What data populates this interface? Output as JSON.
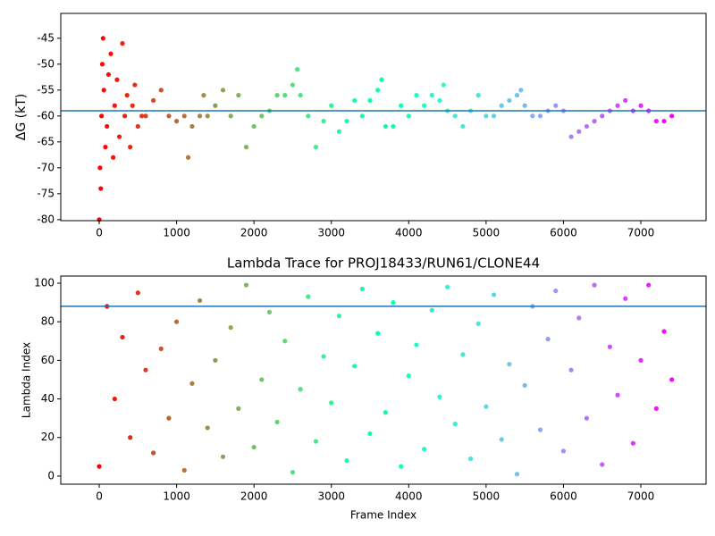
{
  "chart_data": [
    {
      "type": "scatter",
      "ylabel": "ΔG (kT)",
      "colormap": "rainbow_r",
      "hline": -59,
      "hline_color": "#1f77b4",
      "xlim": [
        -497,
        7843
      ],
      "ylim": [
        -80.2,
        -40.2
      ],
      "xticks": [
        0,
        1000,
        2000,
        3000,
        4000,
        5000,
        6000,
        7000
      ],
      "yticks": [
        -80,
        -75,
        -70,
        -65,
        -60,
        -55,
        -50,
        -45
      ],
      "x": [
        0,
        10,
        20,
        30,
        40,
        50,
        60,
        80,
        100,
        120,
        150,
        180,
        200,
        230,
        260,
        300,
        330,
        360,
        400,
        430,
        460,
        500,
        550,
        600,
        700,
        800,
        900,
        1000,
        1100,
        1150,
        1200,
        1300,
        1350,
        1400,
        1500,
        1600,
        1700,
        1800,
        1900,
        2000,
        2100,
        2200,
        2300,
        2400,
        2500,
        2560,
        2600,
        2700,
        2800,
        2900,
        3000,
        3100,
        3200,
        3300,
        3400,
        3500,
        3600,
        3650,
        3700,
        3800,
        3900,
        4000,
        4100,
        4200,
        4300,
        4400,
        4450,
        4500,
        4600,
        4700,
        4800,
        4900,
        5000,
        5100,
        5200,
        5300,
        5400,
        5450,
        5500,
        5600,
        5700,
        5800,
        5900,
        6000,
        6100,
        6200,
        6300,
        6400,
        6500,
        6600,
        6700,
        6800,
        6900,
        7000,
        7100,
        7200,
        7300,
        7400
      ],
      "values": [
        -80,
        -70,
        -74,
        -60,
        -50,
        -45,
        -55,
        -66,
        -62,
        -52,
        -48,
        -68,
        -58,
        -53,
        -64,
        -46,
        -60,
        -56,
        -66,
        -58,
        -54,
        -62,
        -60,
        -60,
        -57,
        -55,
        -60,
        -61,
        -60,
        -68,
        -62,
        -60,
        -56,
        -60,
        -58,
        -55,
        -60,
        -56,
        -66,
        -62,
        -60,
        -59,
        -56,
        -56,
        -54,
        -51,
        -56,
        -60,
        -66,
        -61,
        -58,
        -63,
        -61,
        -57,
        -60,
        -57,
        -55,
        -53,
        -62,
        -62,
        -58,
        -60,
        -56,
        -58,
        -56,
        -57,
        -54,
        -59,
        -60,
        -62,
        -59,
        -56,
        -60,
        -60,
        -58,
        -57,
        -56,
        -55,
        -58,
        -60,
        -60,
        -59,
        -58,
        -59,
        -64,
        -63,
        -62,
        -61,
        -60,
        -59,
        -58,
        -57,
        -59,
        -58,
        -59,
        -61,
        -61,
        -60
      ]
    },
    {
      "type": "scatter",
      "title": "Lambda Trace for PROJ18433/RUN61/CLONE44",
      "xlabel": "Frame Index",
      "ylabel": "Lambda Index",
      "colormap": "rainbow_r",
      "hline": 88,
      "hline_color": "#1f77b4",
      "xlim": [
        -497,
        7843
      ],
      "ylim": [
        -4.2,
        103.7
      ],
      "xticks": [
        0,
        1000,
        2000,
        3000,
        4000,
        5000,
        6000,
        7000
      ],
      "yticks": [
        0,
        20,
        40,
        60,
        80,
        100
      ],
      "x": [
        0,
        100,
        200,
        300,
        400,
        500,
        600,
        700,
        800,
        900,
        1000,
        1100,
        1200,
        1300,
        1400,
        1500,
        1600,
        1700,
        1800,
        1900,
        2000,
        2100,
        2200,
        2300,
        2400,
        2500,
        2600,
        2700,
        2800,
        2900,
        3000,
        3100,
        3200,
        3300,
        3400,
        3500,
        3600,
        3700,
        3800,
        3900,
        4000,
        4100,
        4200,
        4300,
        4400,
        4500,
        4600,
        4700,
        4800,
        4900,
        5000,
        5100,
        5200,
        5300,
        5400,
        5500,
        5600,
        5700,
        5800,
        5900,
        6000,
        6100,
        6200,
        6300,
        6400,
        6500,
        6600,
        6700,
        6800,
        6900,
        7000,
        7100,
        7200,
        7300,
        7400
      ],
      "values": [
        5,
        88,
        40,
        72,
        20,
        95,
        55,
        12,
        66,
        30,
        80,
        3,
        48,
        91,
        25,
        60,
        10,
        77,
        35,
        99,
        15,
        50,
        85,
        28,
        70,
        2,
        45,
        93,
        18,
        62,
        38,
        83,
        8,
        57,
        97,
        22,
        74,
        33,
        90,
        5,
        52,
        68,
        14,
        86,
        41,
        98,
        27,
        63,
        9,
        79,
        36,
        94,
        19,
        58,
        1,
        47,
        88,
        24,
        71,
        96,
        13,
        55,
        82,
        30,
        99,
        6,
        67,
        42,
        92,
        17,
        60,
        99,
        35,
        75,
        50
      ]
    }
  ]
}
